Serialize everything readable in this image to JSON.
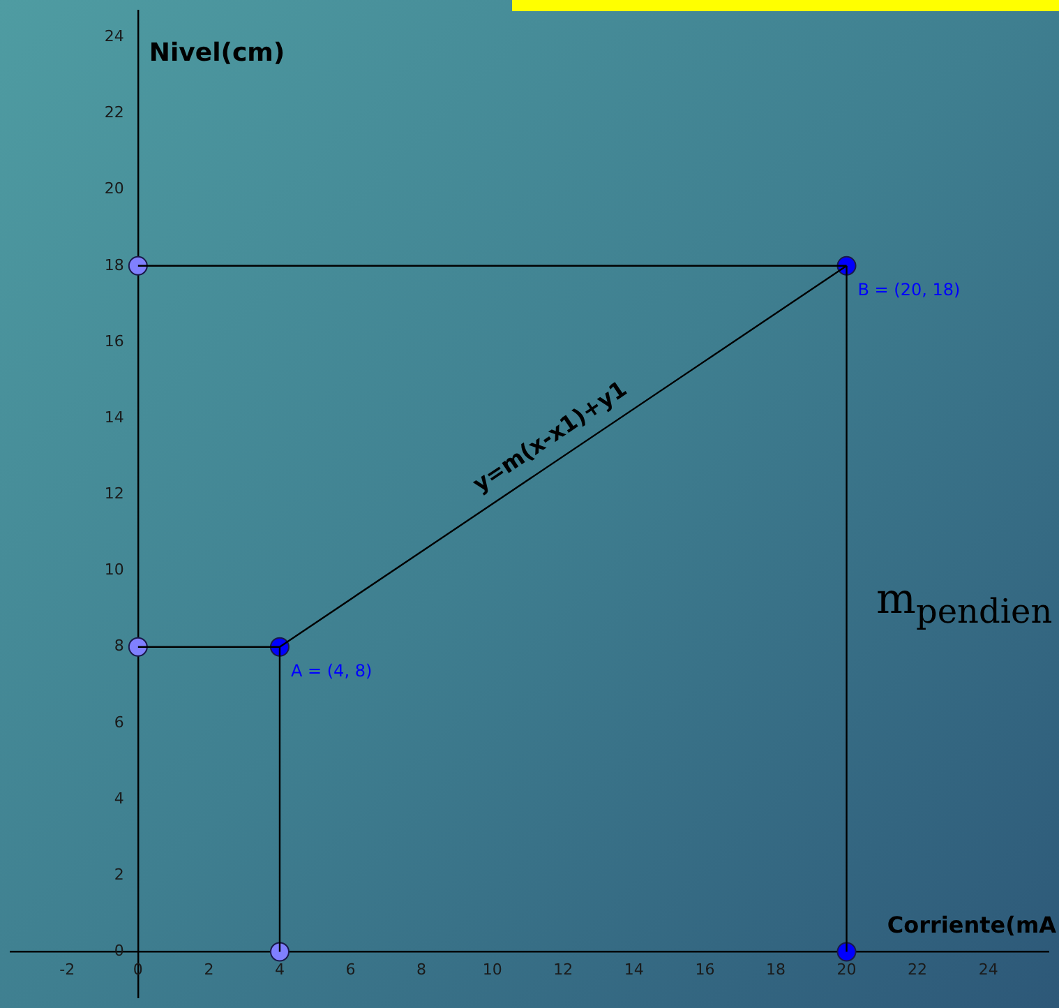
{
  "chart_data": {
    "type": "line",
    "xlabel": "Corriente(mA",
    "ylabel": "Nivel(cm)",
    "xlim": [
      -3.6,
      25.7
    ],
    "ylim": [
      -1.2,
      24.7
    ],
    "xticks": [
      -2,
      0,
      2,
      4,
      6,
      8,
      10,
      12,
      14,
      16,
      18,
      20,
      22,
      24
    ],
    "yticks": [
      0,
      2,
      4,
      6,
      8,
      10,
      12,
      14,
      16,
      18,
      20,
      22,
      24
    ],
    "grid": false,
    "legend": false,
    "marker": "circle",
    "series": [
      {
        "type": "line",
        "color": "#000000",
        "x": [
          4,
          20
        ],
        "values": [
          8,
          18
        ],
        "marker": "none"
      },
      {
        "type": "line",
        "color": "#000000",
        "x": [
          0,
          20
        ],
        "values": [
          18,
          18
        ],
        "marker": "none"
      },
      {
        "type": "line",
        "color": "#000000",
        "x": [
          20,
          20
        ],
        "values": [
          0,
          18
        ],
        "marker": "none"
      },
      {
        "type": "line",
        "color": "#000000",
        "x": [
          0,
          4
        ],
        "values": [
          8,
          8
        ],
        "marker": "none"
      },
      {
        "type": "line",
        "color": "#000000",
        "x": [
          4,
          4
        ],
        "values": [
          0,
          8
        ],
        "marker": "none"
      },
      {
        "type": "scatter",
        "color": "#8080ff",
        "x": [
          0,
          0,
          4
        ],
        "values": [
          18,
          8,
          0
        ]
      },
      {
        "type": "scatter",
        "color": "#0000ff",
        "x": [
          4,
          20,
          20
        ],
        "values": [
          8,
          18,
          0
        ]
      }
    ],
    "annotations": [
      {
        "text": "A = (4, 8)",
        "x": 4,
        "y": 8
      },
      {
        "text": "B = (20, 18)",
        "x": 20,
        "y": 18
      },
      {
        "text": "y=m(x-x1)+y1",
        "x": 12,
        "y": 13
      },
      "m$_{pendien}$"
    ]
  }
}
